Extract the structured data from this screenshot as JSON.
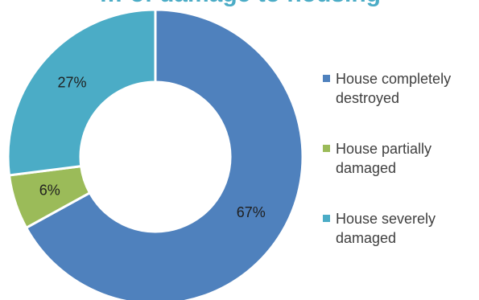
{
  "chart_data": {
    "type": "pie",
    "variant": "doughnut",
    "title": "",
    "title_partial": "… of damage to housing",
    "categories": [
      "House completely destroyed",
      "House partially damaged",
      "House severely damaged"
    ],
    "values": [
      67,
      6,
      27
    ],
    "value_labels": [
      "67%",
      "6%",
      "27%"
    ],
    "colors": [
      "#4f81bd",
      "#9bbb59",
      "#4bacc6"
    ],
    "legend": {
      "position": "right",
      "entries": [
        {
          "line1": "House completely",
          "line2": "destroyed"
        },
        {
          "line1": "House partially",
          "line2": "damaged"
        },
        {
          "line1": "House severely",
          "line2": "damaged"
        }
      ]
    }
  }
}
